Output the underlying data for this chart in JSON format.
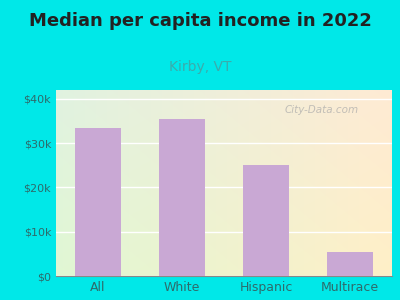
{
  "title": "Median per capita income in 2022",
  "subtitle": "Kirby, VT",
  "categories": [
    "All",
    "White",
    "Hispanic",
    "Multirace"
  ],
  "values": [
    33500,
    35500,
    25000,
    5500
  ],
  "bar_color": "#c9a8d4",
  "title_fontsize": 13,
  "subtitle_fontsize": 10,
  "subtitle_color": "#3aacac",
  "title_color": "#222222",
  "tick_color": "#2e6b6b",
  "background_outer": "#00e8e8",
  "ylim": [
    0,
    42000
  ],
  "yticks": [
    0,
    10000,
    20000,
    30000,
    40000
  ],
  "ytick_labels": [
    "$0",
    "$10k",
    "$20k",
    "$30k",
    "$40k"
  ],
  "watermark": "City-Data.com"
}
